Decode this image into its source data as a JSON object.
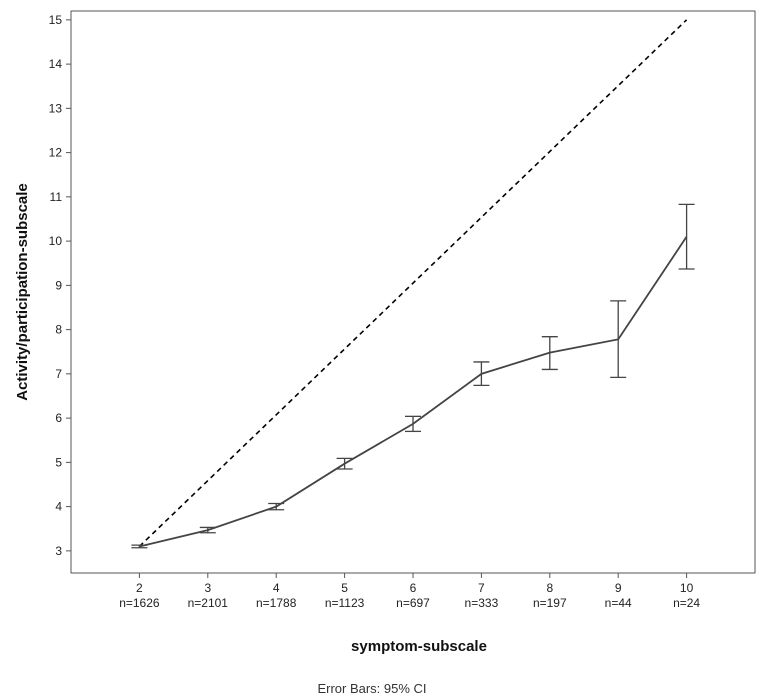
{
  "chart_data": {
    "type": "line",
    "title": "",
    "xlabel": "symptom-subscale",
    "ylabel": "Activity/participation-subscale",
    "footnote": "Error Bars: 95% CI",
    "x": [
      2,
      3,
      4,
      5,
      6,
      7,
      8,
      9,
      10
    ],
    "x_tick_labels": [
      "2",
      "3",
      "4",
      "5",
      "6",
      "7",
      "8",
      "9",
      "10"
    ],
    "n_labels": [
      "n=1626",
      "n=2101",
      "n=1788",
      "n=1123",
      "n=697",
      "n=333",
      "n=197",
      "n=44",
      "n=24"
    ],
    "xlim": [
      1,
      11
    ],
    "ylim": [
      2.5,
      15.2
    ],
    "y_ticks": [
      3,
      4,
      5,
      6,
      7,
      8,
      9,
      10,
      11,
      12,
      13,
      14,
      15
    ],
    "series": [
      {
        "values": [
          3.1,
          3.47,
          4.0,
          4.97,
          5.87,
          7.0,
          7.48,
          7.78,
          10.1
        ],
        "ci_lower": [
          3.07,
          3.41,
          3.93,
          4.85,
          5.7,
          6.74,
          7.1,
          6.92,
          9.37
        ],
        "ci_upper": [
          3.13,
          3.53,
          4.07,
          5.09,
          6.04,
          7.27,
          7.84,
          8.65,
          10.83
        ],
        "color": "#444444",
        "error_bars": "95% CI"
      }
    ],
    "reference_line": {
      "x": [
        2,
        10
      ],
      "y": [
        3.1,
        15.0
      ],
      "style": "dashed",
      "color": "#000000"
    },
    "grid": false
  }
}
